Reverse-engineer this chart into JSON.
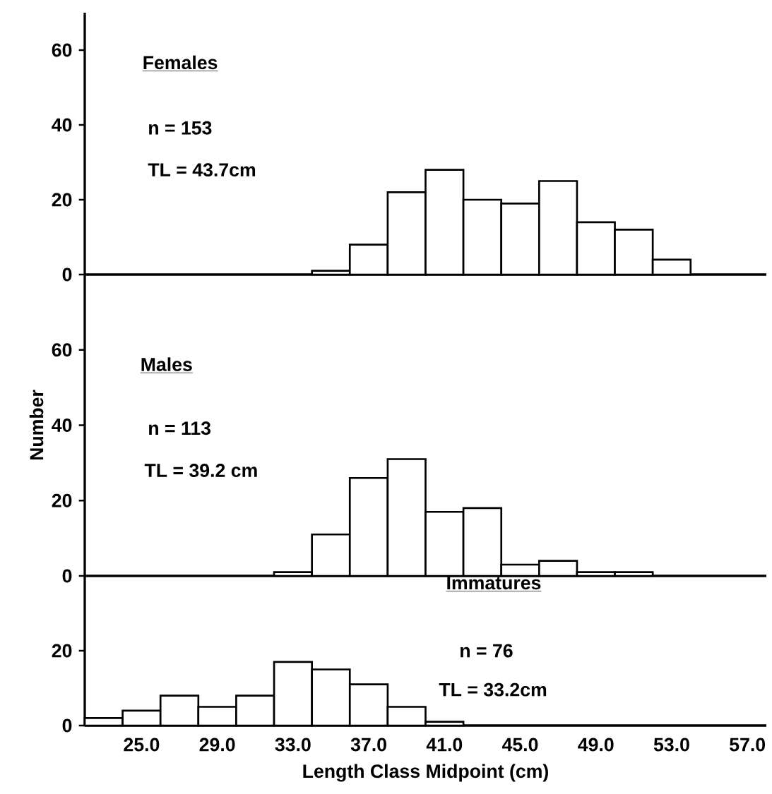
{
  "chart_data": [
    {
      "type": "histogram",
      "title": "Females",
      "annotations": [
        "n = 153",
        "TL = 43.7cm"
      ],
      "color": "#ffffff",
      "bins": [
        34,
        36,
        38,
        40,
        42,
        44,
        46,
        48,
        50,
        52,
        54
      ],
      "values": [
        1,
        8,
        22,
        28,
        20,
        19,
        25,
        14,
        12,
        4
      ],
      "xlim": [
        22,
        58
      ],
      "ylim": [
        0,
        70
      ],
      "yticks": [
        0,
        20,
        40,
        60
      ],
      "tick_labels": "y"
    },
    {
      "type": "histogram",
      "title": "Males",
      "ylabel": "Number",
      "annotations": [
        "n = 113",
        "TL = 39.2 cm"
      ],
      "color": "#ffffff",
      "bins": [
        32,
        34,
        36,
        38,
        40,
        42,
        44,
        46,
        48,
        50,
        52
      ],
      "values": [
        1,
        11,
        26,
        31,
        17,
        18,
        3,
        4,
        1,
        1
      ],
      "xlim": [
        22,
        58
      ],
      "ylim": [
        0,
        80
      ],
      "yticks": [
        0,
        20,
        40,
        60
      ],
      "tick_labels": "y"
    },
    {
      "type": "histogram",
      "title": "Immatures",
      "xlabel": "Length Class Midpoint (cm)",
      "annotations": [
        "n = 76",
        "TL = 33.2cm"
      ],
      "color": "#ffffff",
      "bins": [
        22,
        24,
        26,
        28,
        30,
        32,
        34,
        36,
        38,
        40,
        42
      ],
      "values": [
        2,
        4,
        8,
        5,
        8,
        17,
        15,
        11,
        5,
        1
      ],
      "xlim": [
        22,
        58
      ],
      "ylim": [
        0,
        40
      ],
      "yticks": [
        0,
        20
      ],
      "xticks": [
        {
          "value": 25,
          "label": "25.0"
        },
        {
          "value": 29,
          "label": "29.0"
        },
        {
          "value": 33,
          "label": "33.0"
        },
        {
          "value": 37,
          "label": "37.0"
        },
        {
          "value": 41,
          "label": "41.0"
        },
        {
          "value": 45,
          "label": "45.0"
        },
        {
          "value": 49,
          "label": "49.0"
        },
        {
          "value": 53,
          "label": "53.0"
        },
        {
          "value": 57,
          "label": "57.0"
        }
      ]
    }
  ]
}
